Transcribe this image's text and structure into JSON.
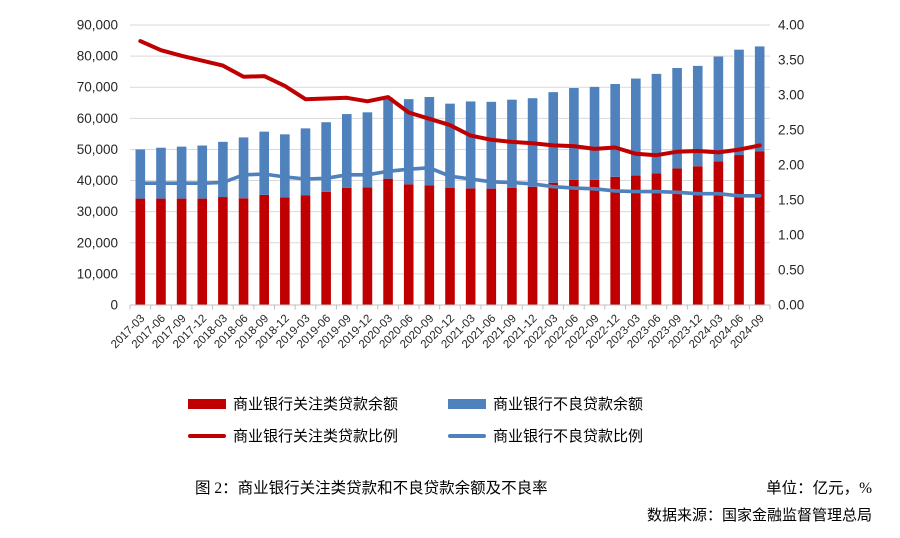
{
  "chart_data": {
    "type": "bar",
    "subtype": "stacked-bars-with-lines",
    "title": "图 2：商业银行关注类贷款和不良贷款余额及不良率",
    "categories": [
      "2017-03",
      "2017-06",
      "2017-09",
      "2017-12",
      "2018-03",
      "2018-06",
      "2018-09",
      "2018-12",
      "2019-03",
      "2019-06",
      "2019-09",
      "2019-12",
      "2020-03",
      "2020-06",
      "2020-09",
      "2020-12",
      "2021-03",
      "2021-06",
      "2021-09",
      "2021-12",
      "2022-03",
      "2022-06",
      "2022-09",
      "2022-12",
      "2023-03",
      "2023-06",
      "2023-09",
      "2023-12",
      "2024-03",
      "2024-06",
      "2024-09"
    ],
    "series": [
      {
        "name": "商业银行关注类贷款余额",
        "type": "bar",
        "axis": "left",
        "color": "#C00000",
        "values": [
          34200,
          34200,
          34200,
          34200,
          34700,
          34300,
          35400,
          34600,
          35200,
          36400,
          37700,
          37800,
          40600,
          38800,
          38500,
          37700,
          37500,
          37400,
          37700,
          38000,
          39300,
          40200,
          40200,
          41200,
          41600,
          42300,
          43900,
          44600,
          46200,
          48200,
          49350
        ]
      },
      {
        "name": "商业银行不良贷款余额",
        "type": "bar",
        "axis": "left",
        "color": "#4F81BD",
        "values": [
          15795,
          16358,
          16704,
          17057,
          17742,
          19571,
          20322,
          20254,
          21571,
          22352,
          23672,
          24135,
          26121,
          27364,
          28350,
          27015,
          27929,
          27908,
          28292,
          28470,
          29118,
          29541,
          29912,
          29829,
          31189,
          31988,
          32279,
          32256,
          33674,
          33871,
          33766
        ]
      },
      {
        "name": "商业银行关注类贷款比例",
        "type": "line",
        "axis": "right",
        "color": "#C00000",
        "values": [
          3.77,
          3.64,
          3.56,
          3.49,
          3.42,
          3.26,
          3.27,
          3.13,
          2.94,
          2.95,
          2.96,
          2.91,
          2.97,
          2.75,
          2.66,
          2.57,
          2.42,
          2.36,
          2.33,
          2.31,
          2.28,
          2.27,
          2.23,
          2.25,
          2.16,
          2.14,
          2.19,
          2.2,
          2.18,
          2.22,
          2.28
        ]
      },
      {
        "name": "商业银行不良贷款比例",
        "type": "line",
        "axis": "right",
        "color": "#4F81BD",
        "values": [
          1.74,
          1.74,
          1.74,
          1.74,
          1.75,
          1.86,
          1.87,
          1.83,
          1.8,
          1.81,
          1.86,
          1.86,
          1.91,
          1.94,
          1.96,
          1.84,
          1.8,
          1.76,
          1.75,
          1.73,
          1.69,
          1.67,
          1.66,
          1.63,
          1.62,
          1.62,
          1.61,
          1.59,
          1.59,
          1.56,
          1.56
        ]
      }
    ],
    "left_axis": {
      "min": 0,
      "max": 90000,
      "step": 10000,
      "ticks": [
        "0",
        "10,000",
        "20,000",
        "30,000",
        "40,000",
        "50,000",
        "60,000",
        "70,000",
        "80,000",
        "90,000"
      ]
    },
    "right_axis": {
      "min": 0,
      "max": 4,
      "step": 0.5,
      "ticks": [
        "0.00",
        "0.50",
        "1.00",
        "1.50",
        "2.00",
        "2.50",
        "3.00",
        "3.50",
        "4.00"
      ]
    },
    "stacked": true,
    "grid": "horizontal",
    "legend_position": "bottom"
  },
  "caption": {
    "title": "图 2：商业银行关注类贷款和不良贷款余额及不良率",
    "unit": "单位：亿元，%",
    "source": "数据来源：国家金融监督管理总局"
  },
  "colors": {
    "bar_red": "#C00000",
    "bar_blue": "#4F81BD",
    "gridline": "#D9D9D9",
    "axis_line": "#BFBFBF",
    "axis_text": "#262626"
  }
}
